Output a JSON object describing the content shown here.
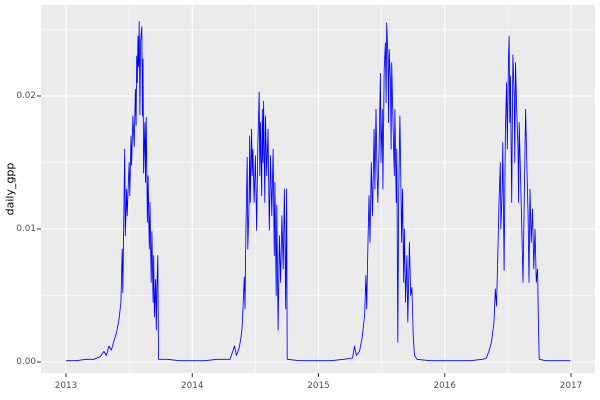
{
  "style": {
    "page_background": "#FFFFFF",
    "panel_background": "#EBEBEB",
    "gridline_color": "#FFFFFF",
    "line_color": "#0000FF",
    "tick_mark_color": "#333333",
    "tick_label_color": "#4D4D4D",
    "axis_title_color": "#000000"
  },
  "chart_data": {
    "type": "line",
    "title": "",
    "xlabel": "",
    "ylabel": "daily_gpp",
    "legend": "none",
    "grid": true,
    "xlim": [
      2012.802,
      2017.19
    ],
    "ylim": [
      -0.000827,
      0.026842
    ],
    "x_ticks": [
      {
        "label": "2013",
        "value": 2013
      },
      {
        "label": "2014",
        "value": 2014
      },
      {
        "label": "2015",
        "value": 2015
      },
      {
        "label": "2016",
        "value": 2016
      },
      {
        "label": "2017",
        "value": 2017
      }
    ],
    "y_ticks": [
      {
        "label": "0.00",
        "value": 0.0
      },
      {
        "label": "0.01",
        "value": 0.01
      },
      {
        "label": "0.02",
        "value": 0.02
      }
    ],
    "x_minor_ticks": [
      2013.5,
      2014.5,
      2015.5,
      2016.5
    ],
    "y_minor_ticks": [
      0.005,
      0.015,
      0.025
    ],
    "series": [
      {
        "name": "daily_gpp",
        "color": "#0000FF",
        "points": [
          [
            2013.0,
            0.0001
          ],
          [
            2013.08,
            0.0001
          ],
          [
            2013.16,
            0.0002
          ],
          [
            2013.22,
            0.0002
          ],
          [
            2013.27,
            0.0004
          ],
          [
            2013.3,
            0.0008
          ],
          [
            2013.32,
            0.0005
          ],
          [
            2013.34,
            0.0012
          ],
          [
            2013.36,
            0.0009
          ],
          [
            2013.38,
            0.0016
          ],
          [
            2013.4,
            0.0022
          ],
          [
            2013.42,
            0.0032
          ],
          [
            2013.435,
            0.0045
          ],
          [
            2013.445,
            0.0085
          ],
          [
            2013.45,
            0.0052
          ],
          [
            2013.46,
            0.0125
          ],
          [
            2013.465,
            0.016
          ],
          [
            2013.47,
            0.0095
          ],
          [
            2013.48,
            0.013
          ],
          [
            2013.485,
            0.011
          ],
          [
            2013.5,
            0.015
          ],
          [
            2013.505,
            0.0125
          ],
          [
            2013.515,
            0.017
          ],
          [
            2013.52,
            0.0148
          ],
          [
            2013.53,
            0.0185
          ],
          [
            2013.54,
            0.0162
          ],
          [
            2013.55,
            0.0205
          ],
          [
            2013.555,
            0.0178
          ],
          [
            2013.56,
            0.023
          ],
          [
            2013.565,
            0.021
          ],
          [
            2013.57,
            0.0245
          ],
          [
            2013.575,
            0.0222
          ],
          [
            2013.58,
            0.0256
          ],
          [
            2013.585,
            0.0186
          ],
          [
            2013.59,
            0.024
          ],
          [
            2013.6,
            0.0252
          ],
          [
            2013.605,
            0.0185
          ],
          [
            2013.61,
            0.0228
          ],
          [
            2013.615,
            0.0142
          ],
          [
            2013.625,
            0.018
          ],
          [
            2013.63,
            0.0135
          ],
          [
            2013.635,
            0.0184
          ],
          [
            2013.645,
            0.0105
          ],
          [
            2013.65,
            0.014
          ],
          [
            2013.66,
            0.0085
          ],
          [
            2013.665,
            0.012
          ],
          [
            2013.675,
            0.006
          ],
          [
            2013.68,
            0.0098
          ],
          [
            2013.69,
            0.0045
          ],
          [
            2013.695,
            0.008
          ],
          [
            2013.7,
            0.0034
          ],
          [
            2013.71,
            0.0062
          ],
          [
            2013.715,
            0.0024
          ],
          [
            2013.72,
            0.0055
          ],
          [
            2013.727,
            0.008
          ],
          [
            2013.733,
            0.0002
          ],
          [
            2013.8,
            0.0002
          ],
          [
            2013.9,
            0.0001
          ],
          [
            2013.95,
            0.0001
          ],
          [
            2014.0,
            0.0001
          ],
          [
            2014.1,
            0.0001
          ],
          [
            2014.2,
            0.0002
          ],
          [
            2014.3,
            0.0002
          ],
          [
            2014.335,
            0.0012
          ],
          [
            2014.35,
            0.0005
          ],
          [
            2014.37,
            0.001
          ],
          [
            2014.385,
            0.0018
          ],
          [
            2014.395,
            0.0026
          ],
          [
            2014.405,
            0.0048
          ],
          [
            2014.412,
            0.0064
          ],
          [
            2014.418,
            0.004
          ],
          [
            2014.425,
            0.0099
          ],
          [
            2014.435,
            0.0154
          ],
          [
            2014.44,
            0.0085
          ],
          [
            2014.45,
            0.012
          ],
          [
            2014.455,
            0.017
          ],
          [
            2014.46,
            0.012
          ],
          [
            2014.47,
            0.0175
          ],
          [
            2014.475,
            0.014
          ],
          [
            2014.48,
            0.016
          ],
          [
            2014.49,
            0.012
          ],
          [
            2014.5,
            0.0155
          ],
          [
            2014.51,
            0.0099
          ],
          [
            2014.52,
            0.0165
          ],
          [
            2014.53,
            0.0203
          ],
          [
            2014.535,
            0.014
          ],
          [
            2014.54,
            0.018
          ],
          [
            2014.55,
            0.0125
          ],
          [
            2014.555,
            0.019
          ],
          [
            2014.56,
            0.015
          ],
          [
            2014.565,
            0.0196
          ],
          [
            2014.575,
            0.012
          ],
          [
            2014.58,
            0.0185
          ],
          [
            2014.59,
            0.014
          ],
          [
            2014.6,
            0.0175
          ],
          [
            2014.61,
            0.0099
          ],
          [
            2014.62,
            0.0155
          ],
          [
            2014.63,
            0.011
          ],
          [
            2014.64,
            0.016
          ],
          [
            2014.65,
            0.008
          ],
          [
            2014.655,
            0.0135
          ],
          [
            2014.665,
            0.005
          ],
          [
            2014.67,
            0.0118
          ],
          [
            2014.68,
            0.0024
          ],
          [
            2014.69,
            0.0095
          ],
          [
            2014.7,
            0.006
          ],
          [
            2014.71,
            0.011
          ],
          [
            2014.72,
            0.007
          ],
          [
            2014.73,
            0.013
          ],
          [
            2014.74,
            0.004
          ],
          [
            2014.747,
            0.013
          ],
          [
            2014.752,
            0.0002
          ],
          [
            2014.85,
            0.0001
          ],
          [
            2014.95,
            0.0001
          ],
          [
            2015.0,
            0.0001
          ],
          [
            2015.1,
            0.0001
          ],
          [
            2015.2,
            0.0002
          ],
          [
            2015.27,
            0.0003
          ],
          [
            2015.285,
            0.0012
          ],
          [
            2015.3,
            0.0005
          ],
          [
            2015.325,
            0.0008
          ],
          [
            2015.345,
            0.0018
          ],
          [
            2015.365,
            0.0035
          ],
          [
            2015.375,
            0.0065
          ],
          [
            2015.382,
            0.004
          ],
          [
            2015.39,
            0.008
          ],
          [
            2015.4,
            0.0125
          ],
          [
            2015.408,
            0.009
          ],
          [
            2015.418,
            0.015
          ],
          [
            2015.428,
            0.011
          ],
          [
            2015.44,
            0.0175
          ],
          [
            2015.447,
            0.013
          ],
          [
            2015.455,
            0.019
          ],
          [
            2015.463,
            0.0145
          ],
          [
            2015.47,
            0.012
          ],
          [
            2015.48,
            0.016
          ],
          [
            2015.49,
            0.0217
          ],
          [
            2015.495,
            0.015
          ],
          [
            2015.505,
            0.019
          ],
          [
            2015.51,
            0.013
          ],
          [
            2015.52,
            0.022
          ],
          [
            2015.53,
            0.024
          ],
          [
            2015.535,
            0.0195
          ],
          [
            2015.54,
            0.0255
          ],
          [
            2015.55,
            0.023
          ],
          [
            2015.555,
            0.018
          ],
          [
            2015.56,
            0.0235
          ],
          [
            2015.57,
            0.021
          ],
          [
            2015.575,
            0.016
          ],
          [
            2015.58,
            0.0225
          ],
          [
            2015.59,
            0.018
          ],
          [
            2015.6,
            0.014
          ],
          [
            2015.605,
            0.019
          ],
          [
            2015.615,
            0.012
          ],
          [
            2015.62,
            0.016
          ],
          [
            2015.628,
            0.0015
          ],
          [
            2015.635,
            0.0125
          ],
          [
            2015.645,
            0.0185
          ],
          [
            2015.65,
            0.015
          ],
          [
            2015.658,
            0.009
          ],
          [
            2015.665,
            0.013
          ],
          [
            2015.675,
            0.006
          ],
          [
            2015.68,
            0.01
          ],
          [
            2015.69,
            0.0045
          ],
          [
            2015.7,
            0.008
          ],
          [
            2015.707,
            0.003
          ],
          [
            2015.715,
            0.0065
          ],
          [
            2015.72,
            0.009
          ],
          [
            2015.73,
            0.005
          ],
          [
            2015.74,
            0.0056
          ],
          [
            2015.75,
            0.002
          ],
          [
            2015.76,
            0.0005
          ],
          [
            2015.78,
            0.0002
          ],
          [
            2015.88,
            0.0001
          ],
          [
            2015.95,
            0.0001
          ],
          [
            2016.0,
            0.0001
          ],
          [
            2016.1,
            0.0001
          ],
          [
            2016.2,
            0.0001
          ],
          [
            2016.3,
            0.0002
          ],
          [
            2016.33,
            0.0003
          ],
          [
            2016.35,
            0.0008
          ],
          [
            2016.37,
            0.0015
          ],
          [
            2016.39,
            0.003
          ],
          [
            2016.4,
            0.0055
          ],
          [
            2016.41,
            0.0042
          ],
          [
            2016.42,
            0.008
          ],
          [
            2016.43,
            0.012
          ],
          [
            2016.44,
            0.015
          ],
          [
            2016.445,
            0.01
          ],
          [
            2016.455,
            0.013
          ],
          [
            2016.46,
            0.0165
          ],
          [
            2016.47,
            0.0069
          ],
          [
            2016.48,
            0.0175
          ],
          [
            2016.49,
            0.021
          ],
          [
            2016.495,
            0.016
          ],
          [
            2016.505,
            0.023
          ],
          [
            2016.51,
            0.0245
          ],
          [
            2016.515,
            0.018
          ],
          [
            2016.52,
            0.0215
          ],
          [
            2016.53,
            0.012
          ],
          [
            2016.54,
            0.0231
          ],
          [
            2016.55,
            0.02
          ],
          [
            2016.555,
            0.015
          ],
          [
            2016.56,
            0.0225
          ],
          [
            2016.57,
            0.019
          ],
          [
            2016.58,
            0.016
          ],
          [
            2016.585,
            0.012
          ],
          [
            2016.59,
            0.018
          ],
          [
            2016.6,
            0.014
          ],
          [
            2016.61,
            0.01
          ],
          [
            2016.62,
            0.006
          ],
          [
            2016.63,
            0.0125
          ],
          [
            2016.64,
            0.019
          ],
          [
            2016.65,
            0.015
          ],
          [
            2016.66,
            0.011
          ],
          [
            2016.667,
            0.006
          ],
          [
            2016.675,
            0.013
          ],
          [
            2016.685,
            0.009
          ],
          [
            2016.695,
            0.0115
          ],
          [
            2016.705,
            0.007
          ],
          [
            2016.715,
            0.01
          ],
          [
            2016.725,
            0.006
          ],
          [
            2016.735,
            0.007
          ],
          [
            2016.742,
            0.0029
          ],
          [
            2016.748,
            0.0002
          ],
          [
            2016.8,
            0.0001
          ],
          [
            2016.9,
            0.0001
          ],
          [
            2016.995,
            0.0001
          ]
        ]
      }
    ]
  }
}
